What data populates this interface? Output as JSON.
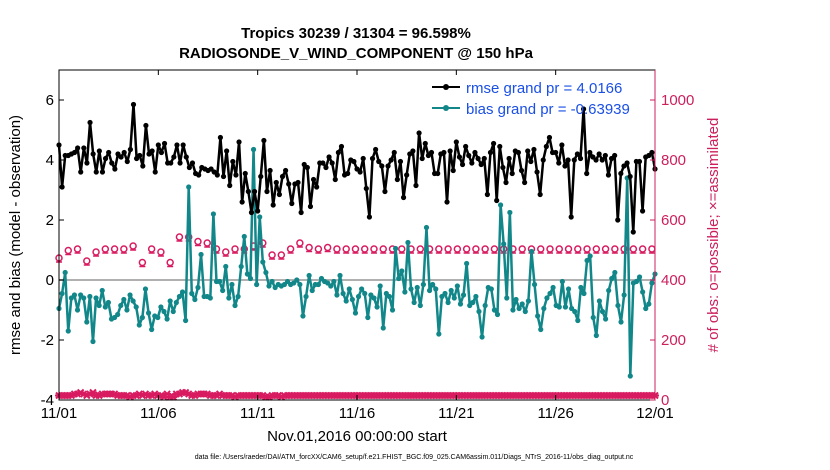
{
  "colors": {
    "rmse": "#000000",
    "bias": "#12878a",
    "obs": "#d81b60",
    "zero_line": "#b0b0b0",
    "legend_text": "#1a4fe6",
    "right_axis": "#cc1f5c"
  },
  "chart_data": {
    "type": "line",
    "title_line1": "Tropics 30239 / 31304 = 96.598%",
    "title_line2": "RADIOSONDE_V_WIND_COMPONENT @ 150 hPa",
    "xlabel": "Nov.01,2016 00:00:00 start",
    "ylabel_left": "rmse and bias (model - observation)",
    "ylabel_right": "# of obs: o=possible; ×=assimilated",
    "footnote": "data file: /Users/raeder/DAI/ATM_forcXX/CAM6_setup/f.e21.FHIST_BGC.f09_025.CAM6assim.011/Diags_NTrS_2016-11/obs_diag_output.nc",
    "xlim": [
      0,
      30
    ],
    "ylim_left": [
      -4,
      7
    ],
    "ylim_right": [
      0,
      1100
    ],
    "x_ticks": [
      0,
      5,
      10,
      15,
      20,
      25,
      30
    ],
    "x_tick_labels": [
      "11/01",
      "11/06",
      "11/11",
      "11/16",
      "11/21",
      "11/26",
      "12/01"
    ],
    "y_left_ticks": [
      "-4",
      "-2",
      "0",
      "2",
      "4",
      "6"
    ],
    "y_left_tick_values": [
      -4,
      -2,
      0,
      2,
      4,
      6
    ],
    "y_right_ticks": [
      "0",
      "200",
      "400",
      "600",
      "800",
      "1000"
    ],
    "y_right_tick_values": [
      0,
      200,
      400,
      600,
      800,
      1000
    ],
    "legend": {
      "rmse_label": "rmse grand pr = 4.0166",
      "bias_label": "bias grand pr = -0.63939"
    },
    "series": [
      {
        "name": "rmse",
        "axis": "left",
        "values": [
          4.5,
          3.1,
          4.15,
          4.15,
          4.2,
          4.25,
          4.4,
          3.6,
          4.4,
          3.9,
          5.25,
          4.2,
          3.6,
          4.3,
          3.6,
          4.05,
          4.25,
          3.9,
          3.7,
          4.2,
          4.1,
          4.25,
          3.95,
          4.35,
          5.85,
          4.05,
          4.15,
          3.8,
          5.15,
          4.2,
          4.3,
          3.6,
          4.5,
          4.25,
          4.55,
          3.9,
          3.9,
          4.1,
          4.5,
          3.9,
          4.5,
          4.1,
          3.75,
          3.9,
          3.55,
          3.5,
          3.75,
          3.7,
          3.65,
          3.7,
          3.6,
          3.5,
          4.75,
          3.45,
          4.3,
          3.15,
          3.95,
          3.5,
          4.6,
          2.6,
          3.55,
          2.95,
          2.25,
          2.95,
          2.3,
          3.45,
          4.65,
          2.95,
          3.65,
          2.5,
          3.25,
          2.85,
          3.45,
          3.65,
          3.2,
          2.55,
          3.2,
          3.25,
          2.25,
          3.85,
          3.75,
          2.45,
          3.35,
          3.1,
          3.9,
          3.9,
          3.75,
          4.1,
          3.9,
          3.35,
          4.25,
          4.45,
          3.5,
          3.55,
          4.0,
          3.95,
          3.7,
          3.6,
          4.05,
          3.05,
          2.1,
          4.05,
          4.35,
          3.95,
          3.8,
          2.95,
          3.8,
          4.0,
          4.25,
          3.35,
          3.95,
          2.75,
          3.5,
          4.2,
          4.3,
          3.15,
          4.9,
          4.05,
          4.55,
          4.15,
          4.25,
          3.55,
          3.55,
          4.2,
          4.25,
          2.6,
          4.3,
          3.65,
          4.6,
          4.1,
          3.85,
          4.45,
          4.15,
          3.9,
          4.25,
          4.05,
          3.85,
          4.05,
          2.85,
          4.25,
          4.55,
          2.65,
          4.45,
          3.75,
          3.25,
          4.05,
          3.55,
          4.3,
          4.25,
          3.65,
          3.25,
          4.3,
          3.95,
          4.35,
          3.6,
          2.85,
          4.0,
          4.45,
          4.75,
          4.25,
          4.25,
          3.9,
          4.5,
          3.8,
          4.0,
          2.1,
          4.0,
          4.2,
          4.05,
          5.7,
          3.55,
          4.25,
          4.1,
          4.0,
          4.2,
          4.0,
          4.15,
          3.5,
          4.05,
          4.15,
          2.0,
          3.55,
          3.8,
          3.9,
          3.45,
          1.6,
          3.95,
          3.95,
          2.3,
          4.1,
          4.15,
          4.25,
          3.7
        ]
      },
      {
        "name": "bias",
        "axis": "left",
        "values": [
          -0.95,
          -0.45,
          0.25,
          -1.7,
          -0.6,
          -0.5,
          -1.0,
          -0.5,
          -0.6,
          -1.4,
          -0.55,
          -2.05,
          -0.6,
          -0.85,
          -0.35,
          -0.9,
          -0.75,
          -1.3,
          -1.25,
          -1.15,
          -0.85,
          -0.65,
          -1.0,
          -0.5,
          -0.7,
          -0.9,
          -1.5,
          -1.25,
          -0.3,
          -1.1,
          -1.65,
          -1.2,
          -1.25,
          -0.9,
          -1.05,
          -1.3,
          -0.7,
          -1.05,
          -0.75,
          -0.55,
          -0.4,
          -1.35,
          3.1,
          -0.45,
          -0.65,
          -0.25,
          0.85,
          -0.55,
          -0.55,
          -0.6,
          2.2,
          -0.05,
          -0.05,
          -0.35,
          0.45,
          -0.6,
          -0.15,
          -0.85,
          -0.55,
          0.45,
          1.45,
          0.2,
          0.05,
          4.35,
          -0.15,
          2.1,
          0.6,
          0.25,
          -0.2,
          -0.05,
          -0.25,
          -0.15,
          -0.2,
          -0.15,
          -0.05,
          -0.15,
          -0.1,
          0.0,
          -0.15,
          -1.2,
          -0.55,
          0.15,
          -0.35,
          -0.15,
          -0.15,
          0.05,
          -0.05,
          -0.1,
          -0.2,
          -0.05,
          -0.5,
          0.15,
          -0.45,
          -0.7,
          -0.3,
          -0.65,
          -1.1,
          -0.55,
          -0.3,
          -0.45,
          -1.25,
          -0.5,
          -0.6,
          -0.9,
          -0.2,
          -1.6,
          -0.45,
          -0.55,
          -1.0,
          1.05,
          0.05,
          0.3,
          -0.4,
          1.25,
          -0.3,
          -0.75,
          -0.25,
          -0.85,
          -0.15,
          1.75,
          -0.35,
          -0.15,
          -0.3,
          -1.8,
          -0.55,
          -0.45,
          -0.75,
          -0.35,
          -0.6,
          -0.2,
          -0.8,
          -0.5,
          0.55,
          -0.85,
          -0.75,
          -0.55,
          -1.05,
          -1.9,
          -0.85,
          -0.25,
          -0.3,
          -1.0,
          -1.15,
          2.5,
          1.2,
          -0.6,
          2.25,
          -1.0,
          -0.65,
          -0.95,
          -0.8,
          -1.05,
          -0.7,
          0.95,
          -0.15,
          -1.2,
          -1.65,
          -0.95,
          -0.6,
          -0.45,
          -0.25,
          -0.85,
          -0.9,
          -0.05,
          -0.9,
          -0.3,
          -0.95,
          -1.05,
          -1.35,
          -0.25,
          -0.45,
          0.65,
          0.8,
          -1.25,
          -1.85,
          -0.7,
          -1.05,
          -1.3,
          -0.35,
          0.05,
          0.25,
          -0.85,
          -1.4,
          -0.5,
          3.4,
          -3.2,
          -0.1,
          -0.05,
          0.1,
          -0.4,
          -0.95,
          -0.8,
          -0.1,
          0.2
        ]
      }
    ],
    "obs_possible": {
      "name": "# obs possible",
      "axis": "right",
      "values": [
        470,
        470,
        480,
        495,
        480,
        455,
        500,
        500,
        480,
        460,
        510,
        520,
        490,
        490,
        480,
        500,
        500,
        500,
        500,
        500,
        490,
        500,
        490,
        450,
        510,
        500,
        470,
        455,
        500,
        475,
        500,
        500,
        475,
        490,
        440,
        500,
        455,
        470,
        505,
        540,
        520,
        540,
        540,
        455,
        490,
        525,
        520,
        530,
        520,
        500,
        510,
        500,
        500,
        500,
        490,
        500,
        500,
        500,
        460,
        495,
        500,
        515,
        500,
        510,
        500,
        505,
        520,
        450,
        475,
        480,
        500,
        505,
        480,
        500,
        505,
        500,
        500,
        520,
        520,
        500,
        500,
        505,
        490,
        500,
        500,
        510,
        500,
        505,
        490,
        500,
        500,
        500,
        500,
        500,
        500,
        500,
        500,
        500,
        500,
        500,
        490,
        500,
        500,
        490,
        505,
        500,
        500,
        500,
        500,
        500,
        500,
        500,
        500,
        500,
        500,
        500,
        500,
        500,
        500,
        510,
        500,
        500,
        500,
        500,
        505,
        500,
        500,
        500,
        500,
        500,
        500,
        500,
        500,
        500,
        510,
        500,
        500,
        500,
        500,
        500,
        500,
        500,
        500,
        500,
        500,
        500,
        500,
        500,
        500,
        500,
        500,
        500,
        500,
        500,
        500,
        500,
        500,
        500,
        500,
        500,
        500,
        500,
        500,
        500,
        500,
        500,
        500,
        500,
        500,
        500,
        500,
        500,
        500,
        500,
        500,
        500,
        500,
        500,
        500,
        500,
        500,
        500,
        500,
        500,
        500,
        500,
        500,
        500,
        500,
        500,
        500,
        500,
        500,
        500
      ]
    },
    "obs_assimilated": {
      "name": "# obs assimilated",
      "axis": "right",
      "values": [
        15,
        15,
        15,
        15,
        15,
        20,
        20,
        25,
        20,
        15,
        20,
        25,
        15,
        15,
        20,
        20,
        20,
        20,
        20,
        15,
        15,
        15,
        15,
        10,
        15,
        15,
        20,
        15,
        20,
        15,
        15,
        20,
        15,
        15,
        10,
        20,
        10,
        10,
        20,
        20,
        25,
        25,
        20,
        15,
        15,
        20,
        20,
        20,
        20,
        15,
        15,
        15,
        20,
        15,
        15,
        15,
        15,
        10,
        15,
        15,
        15,
        15,
        15,
        15,
        15,
        15,
        15,
        10,
        10,
        15,
        15,
        15,
        10,
        15,
        15,
        15,
        15,
        15,
        15,
        15,
        15,
        15,
        15,
        15,
        15,
        15,
        15,
        15,
        15,
        15,
        15,
        15,
        15,
        15,
        15,
        15,
        15,
        15,
        15,
        15,
        15,
        15,
        15,
        15,
        15,
        15,
        15,
        15,
        15,
        15,
        15,
        15,
        15,
        15,
        15,
        15,
        15,
        15,
        15,
        15,
        15,
        15,
        15,
        15,
        15,
        15,
        15,
        15,
        15,
        15,
        15,
        15,
        15,
        15,
        15,
        15,
        15,
        15,
        15,
        15,
        15,
        15,
        15,
        15,
        15,
        15,
        15,
        15,
        15,
        15,
        15,
        15,
        15,
        15,
        15,
        15,
        15,
        15,
        15,
        15,
        15,
        15,
        15,
        15,
        15,
        15,
        15,
        15,
        15,
        15,
        15,
        15,
        15,
        15,
        15,
        15,
        15,
        15,
        15,
        15,
        15,
        15,
        15,
        15,
        15,
        15,
        15,
        15,
        15,
        15,
        15,
        15,
        15,
        15
      ]
    }
  }
}
